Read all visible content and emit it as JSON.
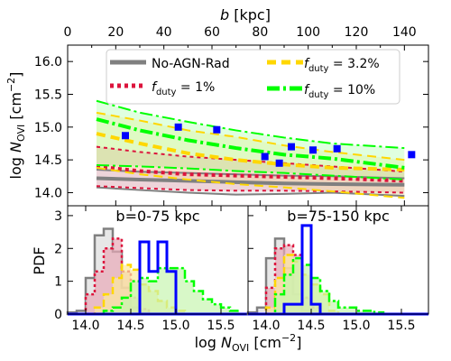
{
  "chart_data": [
    {
      "type": "line",
      "panel": "top",
      "xlabel_top": "b [kpc]",
      "ylabel": "log N_OVI [cm^-2]",
      "xlim": [
        0,
        150
      ],
      "ylim": [
        13.8,
        16.25
      ],
      "xticks": [
        "0",
        "20",
        "40",
        "60",
        "80",
        "100",
        "120",
        "140"
      ],
      "yticks": [
        "14.0",
        "14.5",
        "15.0",
        "15.5",
        "16.0"
      ],
      "legend_placement": "top",
      "legend": [
        {
          "label": "No-AGN-Rad",
          "color": "#808080",
          "style": "solid"
        },
        {
          "label": "f_duty = 3.2%",
          "color": "#FFD700",
          "style": "dashed"
        },
        {
          "label": "f_duty = 1%",
          "color": "#DC143C",
          "style": "dotted"
        },
        {
          "label": "f_duty = 10%",
          "color": "#00FF00",
          "style": "dashdot"
        }
      ],
      "series": [
        {
          "name": "No-AGN-Rad",
          "color": "#808080",
          "style": "solid",
          "x": [
            12,
            30,
            50,
            70,
            90,
            110,
            140
          ],
          "y": [
            14.22,
            14.2,
            14.18,
            14.16,
            14.14,
            14.13,
            14.12
          ],
          "low": [
            14.08,
            14.04,
            14.0,
            13.97,
            13.98,
            14.0,
            13.95
          ],
          "high": [
            14.35,
            14.32,
            14.3,
            14.28,
            14.26,
            14.25,
            14.22
          ]
        },
        {
          "name": "f_duty = 1%",
          "color": "#DC143C",
          "style": "dotted",
          "x": [
            12,
            30,
            50,
            70,
            90,
            110,
            140
          ],
          "y": [
            14.4,
            14.33,
            14.28,
            14.26,
            14.24,
            14.22,
            14.18
          ],
          "low": [
            14.1,
            14.07,
            14.04,
            14.03,
            14.03,
            14.02,
            14.0
          ],
          "high": [
            14.7,
            14.62,
            14.55,
            14.5,
            14.45,
            14.4,
            14.32
          ]
        },
        {
          "name": "f_duty = 3.2%",
          "color": "#FFD700",
          "style": "dashed",
          "x": [
            12,
            30,
            50,
            70,
            90,
            110,
            140
          ],
          "y": [
            14.9,
            14.75,
            14.6,
            14.5,
            14.43,
            14.38,
            14.35
          ],
          "low": [
            14.38,
            14.28,
            14.2,
            14.13,
            14.08,
            14.02,
            13.92
          ],
          "high": [
            15.22,
            15.1,
            14.95,
            14.85,
            14.72,
            14.62,
            14.5
          ]
        },
        {
          "name": "f_duty = 10%",
          "color": "#00FF00",
          "style": "dashdot",
          "x": [
            12,
            30,
            50,
            70,
            90,
            110,
            140
          ],
          "y": [
            15.12,
            14.95,
            14.8,
            14.68,
            14.58,
            14.52,
            14.38
          ],
          "low": [
            14.42,
            14.4,
            14.37,
            14.33,
            14.3,
            14.26,
            14.2
          ],
          "high": [
            15.4,
            15.22,
            15.08,
            14.95,
            14.84,
            14.75,
            14.68
          ]
        }
      ],
      "observations": {
        "color": "#0000FF",
        "x": [
          24,
          46,
          62,
          82,
          88,
          93,
          102,
          112,
          143
        ],
        "y": [
          14.87,
          15.0,
          14.96,
          14.55,
          14.45,
          14.7,
          14.65,
          14.67,
          14.58
        ]
      }
    },
    {
      "type": "histogram",
      "panel": "bottom-left",
      "title": "b=0-75 kpc",
      "xlabel": "log N_OVI [cm^-2]",
      "ylabel": "PDF",
      "xlim": [
        13.8,
        15.8
      ],
      "ylim": [
        0,
        3.3
      ],
      "xticks": [
        "14.0",
        "14.5",
        "15.0",
        "15.5"
      ],
      "yticks": [
        "0",
        "1",
        "2",
        "3"
      ],
      "bin_edges": [
        13.8,
        13.9,
        14.0,
        14.1,
        14.2,
        14.3,
        14.4,
        14.5,
        14.6,
        14.7,
        14.8,
        14.9,
        15.0,
        15.1,
        15.2,
        15.3,
        15.4,
        15.5,
        15.6,
        15.7,
        15.8
      ],
      "series": [
        {
          "name": "No-AGN-Rad",
          "color": "#808080",
          "fill": "#dddddd",
          "values": [
            0.05,
            0.1,
            1.1,
            2.4,
            2.6,
            1.9,
            0.8,
            0.2,
            0.05,
            0,
            0,
            0,
            0,
            0,
            0,
            0,
            0,
            0,
            0,
            0
          ]
        },
        {
          "name": "f_duty = 1%",
          "color": "#DC143C",
          "fill": "#e8aab8",
          "values": [
            0,
            0,
            0.6,
            1.3,
            2.0,
            2.3,
            1.3,
            0.5,
            0.15,
            0,
            0,
            0,
            0,
            0,
            0,
            0,
            0,
            0,
            0,
            0
          ]
        },
        {
          "name": "f_duty = 3.2%",
          "color": "#FFD700",
          "fill": "#fbe9a0",
          "values": [
            0,
            0,
            0,
            0.2,
            0.6,
            1.1,
            1.5,
            1.35,
            0.9,
            0.7,
            0.4,
            0.2,
            0.1,
            0,
            0,
            0,
            0,
            0,
            0,
            0
          ]
        },
        {
          "name": "f_duty = 10%",
          "color": "#00FF00",
          "fill": "#c8f5b0",
          "values": [
            0,
            0,
            0,
            0,
            0.1,
            0.2,
            0.5,
            1.0,
            1.1,
            1.0,
            1.4,
            1.4,
            1.4,
            1.0,
            0.7,
            0.45,
            0.3,
            0.2,
            0.1,
            0
          ]
        },
        {
          "name": "observations",
          "color": "#0000FF",
          "fill": "none",
          "values": [
            0,
            0,
            0,
            0,
            0,
            0,
            0,
            0,
            2.2,
            1.3,
            2.2,
            1.3,
            0,
            0,
            0,
            0,
            0,
            0,
            0,
            0
          ]
        }
      ]
    },
    {
      "type": "histogram",
      "panel": "bottom-right",
      "title": "b=75-150 kpc",
      "xlim": [
        13.8,
        15.8
      ],
      "ylim": [
        0,
        3.3
      ],
      "xticks": [
        "14.0",
        "14.5",
        "15.0",
        "15.5"
      ],
      "bin_edges": [
        13.8,
        13.9,
        14.0,
        14.1,
        14.2,
        14.3,
        14.4,
        14.5,
        14.6,
        14.7,
        14.8,
        14.9,
        15.0,
        15.1,
        15.2,
        15.3,
        15.4,
        15.5,
        15.6,
        15.7,
        15.8
      ],
      "series": [
        {
          "name": "No-AGN-Rad",
          "color": "#808080",
          "fill": "#dddddd",
          "values": [
            0.05,
            0.2,
            1.7,
            2.3,
            1.4,
            0.6,
            0.1,
            0,
            0,
            0,
            0,
            0,
            0,
            0,
            0,
            0,
            0,
            0,
            0,
            0
          ]
        },
        {
          "name": "f_duty = 1%",
          "color": "#DC143C",
          "fill": "#e8aab8",
          "values": [
            0,
            0,
            0.8,
            2.0,
            2.1,
            1.8,
            0.5,
            0.2,
            0,
            0,
            0,
            0,
            0,
            0,
            0,
            0,
            0,
            0,
            0,
            0
          ]
        },
        {
          "name": "f_duty = 3.2%",
          "color": "#FFD700",
          "fill": "#fbe9a0",
          "values": [
            0,
            0,
            0.2,
            1.1,
            1.8,
            1.6,
            1.2,
            0.9,
            0.6,
            0.1,
            0,
            0,
            0,
            0,
            0,
            0,
            0,
            0,
            0,
            0
          ]
        },
        {
          "name": "f_duty = 10%",
          "color": "#00FF00",
          "fill": "#c8f5b0",
          "values": [
            0,
            0,
            0,
            0.6,
            1.2,
            1.7,
            1.5,
            1.1,
            0.7,
            0.4,
            0.2,
            0.2,
            0.1,
            0.1,
            0.05,
            0,
            0,
            0,
            0,
            0
          ]
        },
        {
          "name": "observations",
          "color": "#0000FF",
          "fill": "none",
          "values": [
            0,
            0,
            0,
            0,
            0.3,
            0.3,
            2.7,
            0.3,
            0,
            0,
            0,
            0,
            0,
            0,
            0,
            0,
            0,
            0,
            0,
            0
          ]
        }
      ]
    }
  ]
}
